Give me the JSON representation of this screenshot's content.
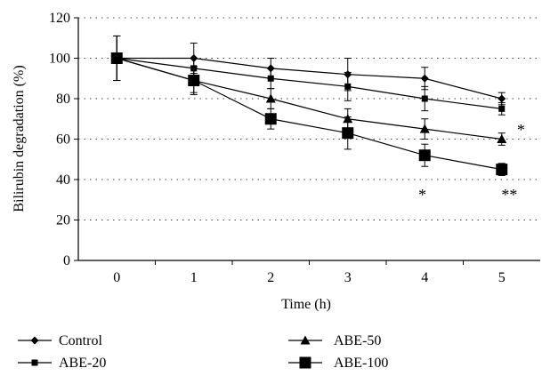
{
  "chart_data": {
    "type": "line",
    "xlabel": "Time (h)",
    "ylabel": "Bilirubin degradation (%)",
    "xlim": [
      -0.5,
      5.5
    ],
    "ylim": [
      0,
      120
    ],
    "x_ticks": [
      0,
      1,
      2,
      3,
      4,
      5
    ],
    "y_ticks": [
      0,
      20,
      40,
      60,
      80,
      100,
      120
    ],
    "grid": "horizontal dotted",
    "legend_position": "bottom",
    "series": [
      {
        "name": "Control",
        "marker": "diamond",
        "x": [
          0,
          1,
          2,
          3,
          4,
          5
        ],
        "values": [
          100,
          100,
          95,
          92,
          90,
          80
        ],
        "error": [
          11,
          7.5,
          5,
          8,
          5.5,
          3
        ]
      },
      {
        "name": "ABE-20",
        "marker": "square-small",
        "x": [
          0,
          1,
          2,
          3,
          4,
          5
        ],
        "values": [
          100,
          95,
          90,
          86,
          80,
          75
        ],
        "error": [
          11,
          5,
          5,
          7,
          6,
          3
        ]
      },
      {
        "name": "ABE-50",
        "marker": "triangle",
        "x": [
          0,
          1,
          2,
          3,
          4,
          5
        ],
        "values": [
          100,
          89,
          80,
          70,
          65,
          60
        ],
        "error": [
          11,
          6,
          5,
          5,
          5,
          3
        ]
      },
      {
        "name": "ABE-100",
        "marker": "square-large",
        "x": [
          0,
          1,
          2,
          3,
          4,
          5
        ],
        "values": [
          100,
          89,
          70,
          63,
          52,
          45
        ],
        "error": [
          11,
          7,
          5,
          8,
          5.5,
          3
        ]
      }
    ],
    "annotations": [
      {
        "text": "*",
        "x": 5.25,
        "y": 62
      },
      {
        "text": "*",
        "x": 3.97,
        "y": 30
      },
      {
        "text": "**",
        "x": 5.1,
        "y": 30
      }
    ]
  }
}
